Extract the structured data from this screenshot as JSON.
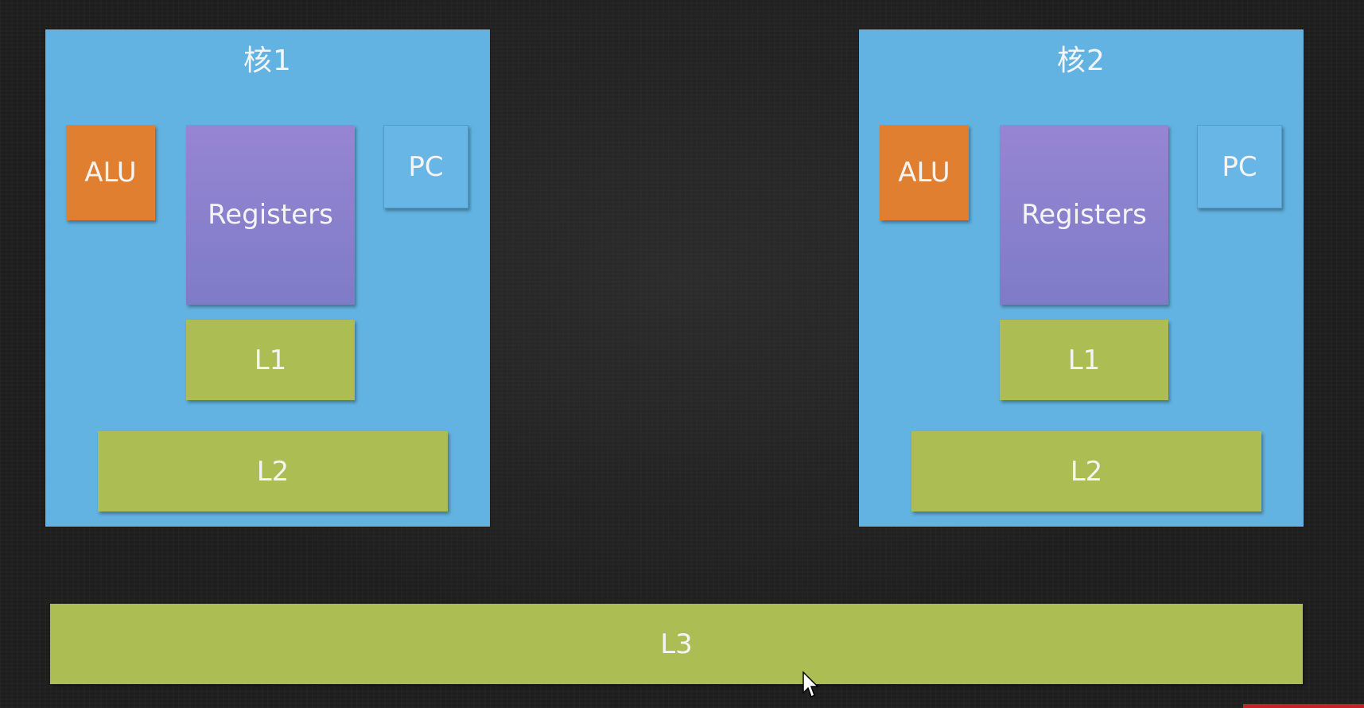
{
  "cores": [
    {
      "title": "核1",
      "alu": "ALU",
      "registers": "Registers",
      "pc": "PC",
      "l1": "L1",
      "l2": "L2"
    },
    {
      "title": "核2",
      "alu": "ALU",
      "registers": "Registers",
      "pc": "PC",
      "l1": "L1",
      "l2": "L2"
    }
  ],
  "shared_cache": {
    "l3": "L3"
  },
  "colors": {
    "background": "#1e1e1e",
    "core": "#63b3e2",
    "alu": "#e07f2f",
    "registers": "#8a80cc",
    "pc": "#67b6e6",
    "cache": "#acbe53",
    "text": "#f4f4f4"
  },
  "icons": {
    "cursor": "mouse-pointer-icon"
  }
}
